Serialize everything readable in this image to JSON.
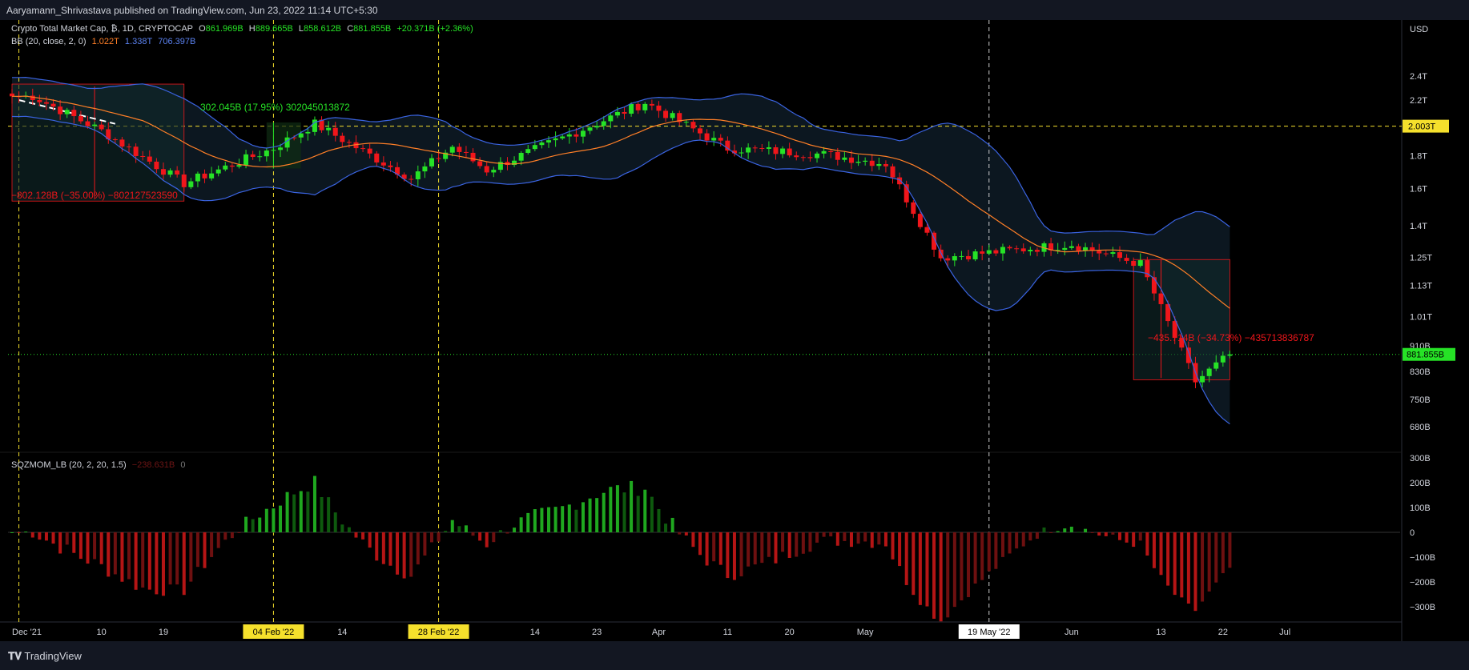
{
  "header": {
    "published": "Aaryamann_Shrivastava published on TradingView.com, Jun 23, 2022 11:14 UTC+5:30"
  },
  "legend_main": {
    "symbol": "Crypto Total Market Cap, ₿, 1D, CRYPTOCAP",
    "o_label": "O",
    "o": "861.969B",
    "h_label": "H",
    "h": "889.665B",
    "l_label": "L",
    "l": "858.612B",
    "c_label": "C",
    "c": "881.855B",
    "change": "+20.371B (+2.36%)"
  },
  "legend_bb": {
    "label": "BB (20, close, 2, 0)",
    "basis": "1.022T",
    "upper": "1.338T",
    "lower": "706.397B"
  },
  "legend_sqz": {
    "label": "SQZMOM_LB (20, 2, 20, 1.5)",
    "value": "−238.631B",
    "zero": "0"
  },
  "footer": {
    "brand": "TradingView"
  },
  "colors": {
    "up": "#26e226",
    "down": "#f0161b",
    "bb_upper": "#3a63e0",
    "bb_basis": "#ff7f27",
    "bg": "#000000",
    "sqz_up": "#1fa81f",
    "sqz_down": "#b51515"
  },
  "chart_data": [
    {
      "type": "candlestick",
      "title": "Crypto Total Market Cap, ₿, 1D, CRYPTOCAP",
      "y_axis_unit": "USD",
      "y_scale": "log",
      "ylim": [
        620000000000,
        2900000000000
      ],
      "y_ticks": [
        "2.4T",
        "2.2T",
        "2.003T",
        "1.8T",
        "1.6T",
        "1.4T",
        "1.25T",
        "1.13T",
        "1.01T",
        "910B",
        "881.855B",
        "830B",
        "750B",
        "680B"
      ],
      "x_ticks": [
        "Dec '21",
        "10",
        "19",
        "04 Feb '22",
        "14",
        "28 Feb '22",
        "14",
        "23",
        "Apr",
        "11",
        "20",
        "May",
        "19 May '22",
        "Jun",
        "13",
        "22",
        "Jul"
      ],
      "highlighted_x_ticks": [
        "04 Feb '22",
        "28 Feb '22",
        "19 May '22"
      ],
      "horizontal_line": {
        "value": 2003000000000,
        "label": "2.003T"
      },
      "last_price": {
        "value": 881855000000,
        "label": "881.855B"
      },
      "ohlc_key_points": [
        {
          "date": "2021-12-31",
          "close": 2230000000000
        },
        {
          "date": "2022-01-10",
          "close": 1970000000000
        },
        {
          "date": "2022-01-22",
          "close": 1630000000000
        },
        {
          "date": "2022-02-04",
          "close": 1850000000000
        },
        {
          "date": "2022-02-10",
          "close": 2020000000000
        },
        {
          "date": "2022-02-24",
          "close": 1660000000000
        },
        {
          "date": "2022-03-02",
          "close": 1860000000000
        },
        {
          "date": "2022-03-07",
          "close": 1710000000000
        },
        {
          "date": "2022-03-30",
          "close": 2180000000000
        },
        {
          "date": "2022-04-11",
          "close": 1850000000000
        },
        {
          "date": "2022-04-25",
          "close": 1810000000000
        },
        {
          "date": "2022-05-04",
          "close": 1750000000000
        },
        {
          "date": "2022-05-12",
          "close": 1250000000000
        },
        {
          "date": "2022-05-31",
          "close": 1310000000000
        },
        {
          "date": "2022-06-10",
          "close": 1220000000000
        },
        {
          "date": "2022-06-18",
          "close": 800000000000
        },
        {
          "date": "2022-06-23",
          "close": 881855000000
        }
      ],
      "measures": [
        {
          "label": "302.045B (17.95%) 302045013872",
          "direction": "up"
        },
        {
          "label": "−802.128B (−35.00%) −802127523590",
          "direction": "down"
        },
        {
          "label": "−435.714B (−34.73%) −435713836787",
          "direction": "down"
        }
      ],
      "indicator": {
        "name": "BB (20, close, 2, 0)",
        "basis": "1.022T",
        "upper": "1.338T",
        "lower": "706.397B"
      }
    },
    {
      "type": "bar",
      "title": "SQZMOM_LB (20, 2, 20, 1.5)",
      "ylim": [
        -330000000000,
        320000000000
      ],
      "y_ticks": [
        "300B",
        "200B",
        "100B",
        "0",
        "−100B",
        "−200B",
        "−300B"
      ],
      "last_value": "−238.631B"
    }
  ]
}
